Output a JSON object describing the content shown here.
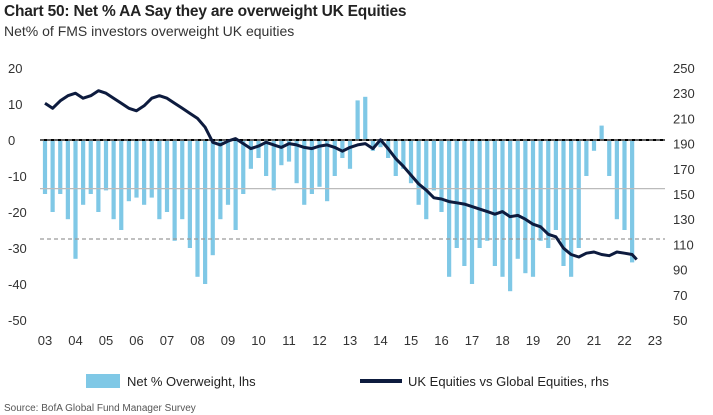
{
  "chart_data": {
    "type": "bar+line",
    "title": "Chart 50: Net % AA Say they are overweight UK Equities",
    "subtitle": "Net% of FMS investors overweight UK equities",
    "x_ticks": [
      "03",
      "04",
      "05",
      "06",
      "07",
      "08",
      "09",
      "10",
      "11",
      "12",
      "13",
      "14",
      "15",
      "16",
      "17",
      "18",
      "19",
      "20",
      "21",
      "22",
      "23"
    ],
    "left_axis": {
      "ticks": [
        20,
        10,
        0,
        -10,
        -20,
        -30,
        -40,
        -50
      ],
      "ylim": [
        -50,
        20
      ]
    },
    "right_axis": {
      "ticks": [
        250,
        230,
        210,
        190,
        170,
        150,
        130,
        110,
        90,
        70,
        50
      ],
      "ylim": [
        50,
        250
      ]
    },
    "reference_lines": [
      {
        "value": 0,
        "style": "solid",
        "color": "#000000",
        "axis": "left"
      },
      {
        "value": -27.5,
        "style": "dashed",
        "color": "#9a9a9a",
        "axis": "left"
      },
      {
        "value": 0,
        "style": "dashed",
        "color": "#9a9a9a",
        "axis": "left"
      },
      {
        "value": -13.5,
        "style": "solid",
        "color": "#bbbbbb",
        "axis": "left"
      }
    ],
    "series": [
      {
        "name": "Net % Overweight, lhs",
        "type": "bar",
        "axis": "left",
        "color": "#7fc8e6",
        "x": [
          2003.0,
          2003.25,
          2003.5,
          2003.75,
          2004.0,
          2004.25,
          2004.5,
          2004.75,
          2005.0,
          2005.25,
          2005.5,
          2005.75,
          2006.0,
          2006.25,
          2006.5,
          2006.75,
          2007.0,
          2007.25,
          2007.5,
          2007.75,
          2008.0,
          2008.25,
          2008.5,
          2008.75,
          2009.0,
          2009.25,
          2009.5,
          2009.75,
          2010.0,
          2010.25,
          2010.5,
          2010.75,
          2011.0,
          2011.25,
          2011.5,
          2011.75,
          2012.0,
          2012.25,
          2012.5,
          2012.75,
          2013.0,
          2013.25,
          2013.5,
          2013.75,
          2014.0,
          2014.25,
          2014.5,
          2014.75,
          2015.0,
          2015.25,
          2015.5,
          2015.75,
          2016.0,
          2016.25,
          2016.5,
          2016.75,
          2017.0,
          2017.25,
          2017.5,
          2017.75,
          2018.0,
          2018.25,
          2018.5,
          2018.75,
          2019.0,
          2019.25,
          2019.5,
          2019.75,
          2020.0,
          2020.25,
          2020.5,
          2020.75,
          2021.0,
          2021.25,
          2021.5,
          2021.75,
          2022.0,
          2022.25
        ],
        "values": [
          -15,
          -20,
          -15,
          -22,
          -33,
          -18,
          -15,
          -20,
          -14,
          -22,
          -25,
          -17,
          -16,
          -18,
          -16,
          -22,
          -20,
          -28,
          -22,
          -30,
          -38,
          -40,
          -32,
          -22,
          -18,
          -25,
          -15,
          -8,
          -5,
          -10,
          -14,
          -7,
          -6,
          -12,
          -18,
          -15,
          -13,
          -17,
          -10,
          -5,
          -8,
          11,
          12,
          -3,
          -2,
          -5,
          -10,
          -8,
          -12,
          -18,
          -22,
          -14,
          -20,
          -38,
          -30,
          -35,
          -40,
          -30,
          -28,
          -35,
          -38,
          -42,
          -33,
          -37,
          -38,
          -28,
          -30,
          -25,
          -35,
          -38,
          -30,
          -10,
          -3,
          4,
          -10,
          -22,
          -25,
          -34
        ]
      },
      {
        "name": "UK Equities vs Global Equities, rhs",
        "type": "line",
        "axis": "right",
        "color": "#0d1b3e",
        "x": [
          2003.0,
          2003.25,
          2003.5,
          2003.75,
          2004.0,
          2004.25,
          2004.5,
          2004.75,
          2005.0,
          2005.25,
          2005.5,
          2005.75,
          2006.0,
          2006.25,
          2006.5,
          2006.75,
          2007.0,
          2007.25,
          2007.5,
          2007.75,
          2008.0,
          2008.25,
          2008.5,
          2008.75,
          2009.0,
          2009.25,
          2009.5,
          2009.75,
          2010.0,
          2010.25,
          2010.5,
          2010.75,
          2011.0,
          2011.25,
          2011.5,
          2011.75,
          2012.0,
          2012.25,
          2012.5,
          2012.75,
          2013.0,
          2013.25,
          2013.5,
          2013.75,
          2014.0,
          2014.25,
          2014.5,
          2014.75,
          2015.0,
          2015.25,
          2015.5,
          2015.75,
          2016.0,
          2016.25,
          2016.5,
          2016.75,
          2017.0,
          2017.25,
          2017.5,
          2017.75,
          2018.0,
          2018.25,
          2018.5,
          2018.75,
          2019.0,
          2019.25,
          2019.5,
          2019.75,
          2020.0,
          2020.25,
          2020.5,
          2020.75,
          2021.0,
          2021.25,
          2021.5,
          2021.75,
          2022.0,
          2022.25,
          2022.4
        ],
        "values": [
          222,
          218,
          224,
          228,
          230,
          226,
          228,
          232,
          230,
          226,
          222,
          218,
          216,
          220,
          226,
          228,
          226,
          222,
          218,
          214,
          210,
          203,
          191,
          189,
          192,
          194,
          190,
          186,
          188,
          191,
          189,
          187,
          190,
          189,
          187,
          186,
          188,
          189,
          187,
          184,
          187,
          189,
          190,
          186,
          193,
          186,
          178,
          172,
          165,
          158,
          153,
          147,
          146,
          144,
          143,
          142,
          140,
          138,
          136,
          134,
          136,
          132,
          133,
          130,
          126,
          124,
          118,
          116,
          107,
          102,
          100,
          103,
          104,
          102,
          101,
          104,
          103,
          102,
          98
        ]
      }
    ],
    "legend": {
      "placement": "bottom"
    }
  },
  "source_text": "Source: BofA Global Fund Manager Survey"
}
